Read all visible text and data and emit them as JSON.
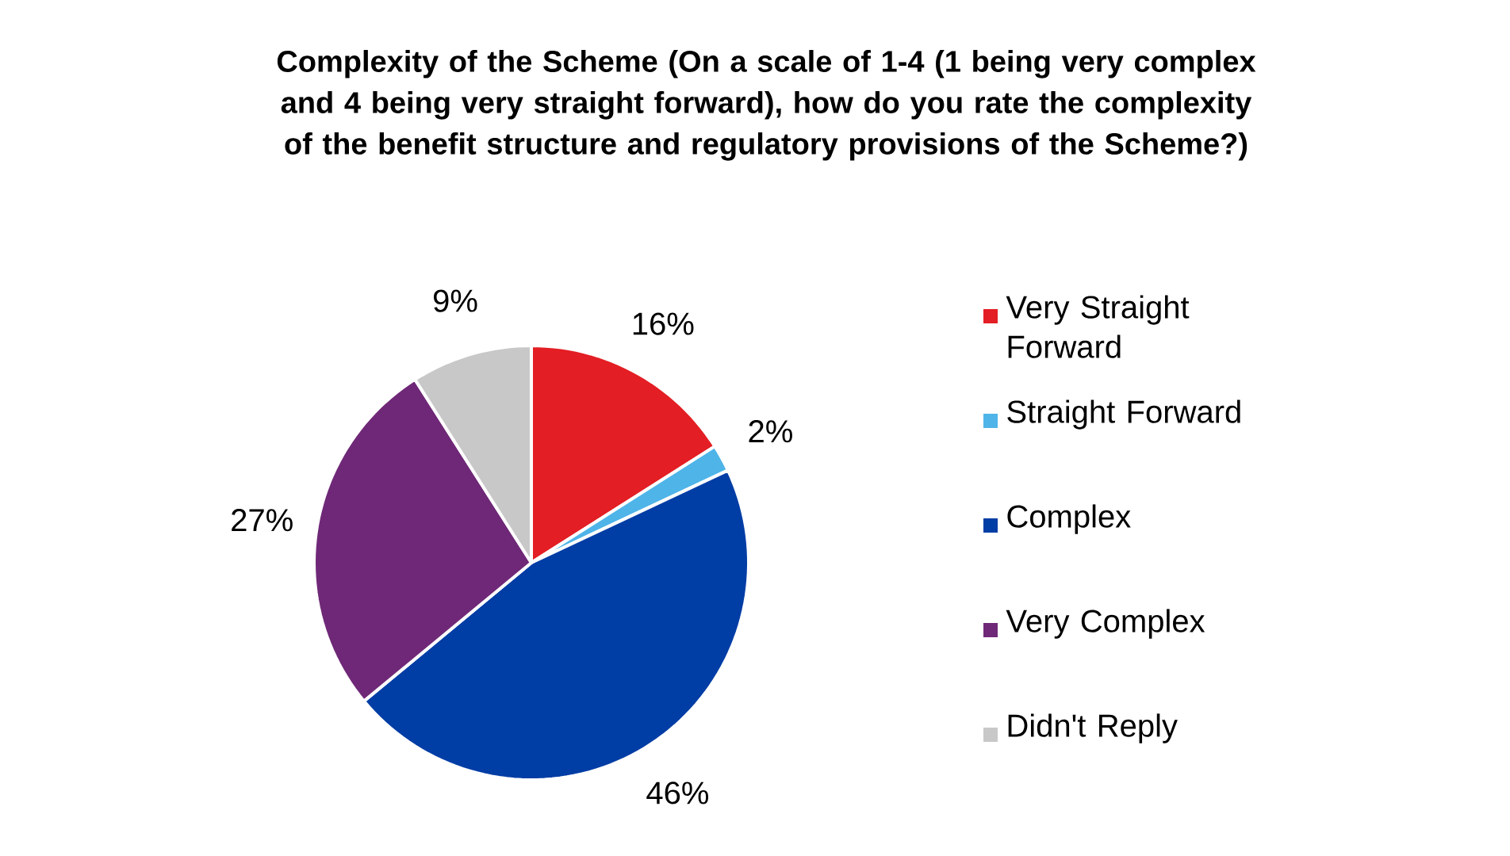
{
  "chart_data": {
    "type": "pie",
    "title": "Complexity of the Scheme (On a scale of 1-4 (1 being very complex and 4 being very straight forward), how do you rate the complexity of the benefit structure and regulatory provisions of the Scheme?)",
    "categories": [
      "Very Straight Forward",
      "Straight Forward",
      "Complex",
      "Very Complex",
      "Didn't Reply"
    ],
    "values": [
      16,
      2,
      46,
      27,
      9
    ],
    "value_labels": [
      "16%",
      "2%",
      "46%",
      "27%",
      "9%"
    ],
    "colors": [
      "#e31e24",
      "#4fb4e8",
      "#003da5",
      "#6f2877",
      "#c8c8c8"
    ],
    "legend": "right"
  }
}
